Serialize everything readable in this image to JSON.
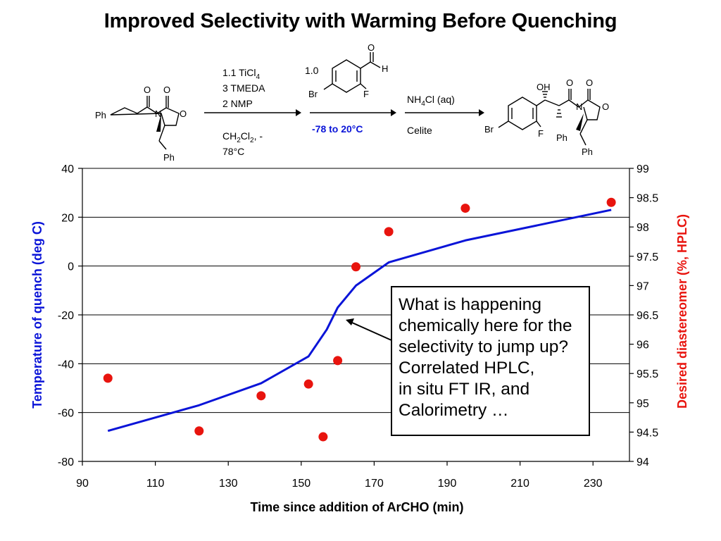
{
  "slide": {
    "title": "Improved Selectivity with Warming Before Quenching"
  },
  "scheme": {
    "sm_ph": "Ph",
    "sm_bn_ph": "Ph",
    "atom_O": "O",
    "atom_N": "N",
    "reagents1": [
      "1.1 TiCl",
      "3 TMEDA",
      "2 NMP"
    ],
    "reagents1_sub": "4",
    "solvent_a": "CH",
    "solvent_sub1": "2",
    "solvent_b": "Cl",
    "solvent_sub2": "2",
    "solvent_c": ", -",
    "solvent_temp": "78°C",
    "aldehyde_equiv": "1.0",
    "aldehyde_Br": "Br",
    "aldehyde_F": "F",
    "aldehyde_O": "O",
    "aldehyde_H": "H",
    "temp_range": "-78 to 20°C",
    "quench_a": "NH",
    "quench_sub": "4",
    "quench_b": "Cl (aq)",
    "workup": "Celite",
    "product_OH": "OH",
    "product_Br": "Br",
    "product_F": "F",
    "product_Ph1": "Ph",
    "product_Ph2": "Ph"
  },
  "callout": {
    "lines": [
      "What is happening",
      "chemically here for the",
      "selectivity to jump up?",
      "Correlated HPLC,",
      "in situ FT IR, and",
      "Calorimetry …"
    ]
  },
  "colors": {
    "temperature_series": "#0a14d8",
    "de_series": "#e8140e",
    "axis": "#000000"
  },
  "chart_data": {
    "type": "line",
    "xlabel": "Time since addition of ArCHO (min)",
    "ylabel": "Temperature of quench (deg C)",
    "y2label": "Desired diastereomer (%, HPLC)",
    "xlim": [
      90,
      240
    ],
    "ylim": [
      -80,
      40
    ],
    "y2lim": [
      94,
      99
    ],
    "xticks": [
      90,
      110,
      130,
      150,
      170,
      190,
      210,
      230
    ],
    "yticks": [
      -80,
      -60,
      -40,
      -20,
      0,
      20,
      40
    ],
    "y2ticks": [
      94,
      94.5,
      95,
      95.5,
      96,
      96.5,
      97,
      97.5,
      98,
      98.5,
      99
    ],
    "xtick_labels": [
      "90",
      "110",
      "130",
      "150",
      "170",
      "190",
      "210",
      "230"
    ],
    "ytick_labels": [
      "-80",
      "-60",
      "-40",
      "-20",
      "0",
      "20",
      "40"
    ],
    "y2tick_labels": [
      "94",
      "94.5",
      "95",
      "95.5",
      "96",
      "96.5",
      "97",
      "97.5",
      "98",
      "98.5",
      "99"
    ],
    "horizontal_grid": true,
    "series": [
      {
        "axis": "left",
        "style": "line",
        "color": "#0a14d8",
        "points": [
          [
            97,
            -67.5
          ],
          [
            122,
            -57
          ],
          [
            139,
            -48
          ],
          [
            152,
            -37
          ],
          [
            157,
            -26
          ],
          [
            160,
            -17
          ],
          [
            165,
            -8
          ],
          [
            174,
            1.5
          ],
          [
            195,
            10.5
          ],
          [
            235,
            23
          ]
        ]
      },
      {
        "axis": "right",
        "style": "markers",
        "color": "#e8140e",
        "points": [
          [
            97,
            95.42
          ],
          [
            122,
            94.52
          ],
          [
            139,
            95.12
          ],
          [
            152,
            95.32
          ],
          [
            156,
            94.42
          ],
          [
            160,
            95.72
          ],
          [
            165,
            97.32
          ],
          [
            174,
            97.92
          ],
          [
            195,
            98.32
          ],
          [
            235,
            98.42
          ]
        ]
      }
    ]
  }
}
